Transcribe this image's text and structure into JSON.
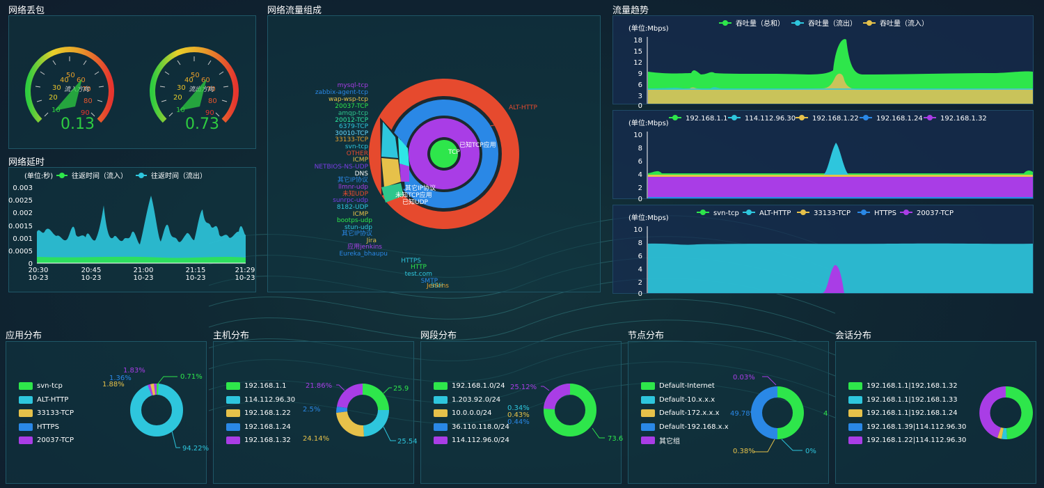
{
  "colors": {
    "green": "#2ee64b",
    "cyan": "#2ec6dd",
    "yellow": "#e6c14a",
    "blue": "#2a88e6",
    "purple": "#a93de6",
    "red": "#e64a2e"
  },
  "packet_loss": {
    "title": "网络丢包",
    "gauges": [
      {
        "label": "流入方向",
        "value": "0.13"
      },
      {
        "label": "流出方向",
        "value": "0.73"
      }
    ],
    "ticks": [
      "10",
      "20",
      "30",
      "40",
      "50",
      "60",
      "70",
      "80",
      "90"
    ]
  },
  "latency": {
    "title": "网络延时",
    "unit": "(单位:秒)",
    "legend": [
      "往返时间（流入）",
      "往返时间（流出）"
    ],
    "y_ticks": [
      "0.003",
      "0.0025",
      "0.002",
      "0.0015",
      "0.001",
      "0.0005",
      "0"
    ],
    "x_ticks": [
      [
        "20:30",
        "10-23"
      ],
      [
        "20:45",
        "10-23"
      ],
      [
        "21:00",
        "10-23"
      ],
      [
        "21:15",
        "10-23"
      ],
      [
        "21:29",
        "10-23"
      ]
    ]
  },
  "composition": {
    "title": "网络流量组成",
    "outer_label": "ALT-HTTP",
    "inner_labels": [
      "已知TCP应用",
      "TCP",
      "其它IP协议",
      "未知TCP应用",
      "已知UDP"
    ],
    "left_labels": [
      "mysql-tcp",
      "zabbix-agent-tcp",
      "wap-wsp-tcp",
      "20037-TCP",
      "amqp-tcp",
      "20012-TCP",
      "6379-TCP",
      "30010-TCP",
      "33133-TCP",
      "svn-tcp",
      "OTHER",
      "ICMP",
      "NETBIOS-NS-UDP",
      "DNS",
      "其它IP协议",
      "llmnr-udp",
      "未知UDP",
      "sunrpc-udp",
      "8182-UDP",
      "ICMP",
      "bootps-udp",
      "stun-udp",
      "其它IP协议",
      "Jira",
      "应用jenkins",
      "Eureka_bhaupu",
      "HTTPS",
      "HTTP",
      "test.com",
      "SMTP",
      "SSH",
      "Jenkins"
    ]
  },
  "trend": {
    "title": "流量趋势",
    "panels": [
      {
        "unit": "(单位:Mbps)",
        "legend": [
          "吞吐量（总和）",
          "吞吐量（流出）",
          "吞吐量（流入）"
        ],
        "y_ticks": [
          "18",
          "15",
          "12",
          "9",
          "6",
          "3",
          "0"
        ]
      },
      {
        "unit": "(单位:Mbps)",
        "legend": [
          "192.168.1.1",
          "114.112.96.30",
          "192.168.1.22",
          "192.168.1.24",
          "192.168.1.32"
        ],
        "y_ticks": [
          "10",
          "8",
          "6",
          "4",
          "2",
          "0"
        ]
      },
      {
        "unit": "(单位:Mbps)",
        "legend": [
          "svn-tcp",
          "ALT-HTTP",
          "33133-TCP",
          "HTTPS",
          "20037-TCP"
        ],
        "y_ticks": [
          "10",
          "8",
          "6",
          "4",
          "2",
          "0"
        ]
      }
    ]
  },
  "distributions": [
    {
      "title": "应用分布",
      "legend": [
        "svn-tcp",
        "ALT-HTTP",
        "33133-TCP",
        "HTTPS",
        "20037-TCP"
      ],
      "labels": [
        "0.71%",
        "1.36%",
        "1.88%",
        "1.83%",
        "94.22%"
      ]
    },
    {
      "title": "主机分布",
      "legend": [
        "192.168.1.1",
        "114.112.96.30",
        "192.168.1.22",
        "192.168.1.24",
        "192.168.1.32"
      ],
      "labels": [
        "25.9",
        "21.86%",
        "2.5%",
        "24.14%",
        "25.54"
      ]
    },
    {
      "title": "网段分布",
      "legend": [
        "192.168.1.0/24",
        "1.203.92.0/24",
        "10.0.0.0/24",
        "36.110.118.0/24",
        "114.112.96.0/24"
      ],
      "labels": [
        "25.12%",
        "0.34%",
        "0.43%",
        "0.44%",
        "73.6"
      ]
    },
    {
      "title": "节点分布",
      "legend": [
        "Default-Internet",
        "Default-10.x.x.x",
        "Default-172.x.x.x",
        "Default-192.168.x.x",
        "其它组"
      ],
      "labels": [
        "0.03%",
        "49.78%",
        "0.38%",
        "0%",
        "4"
      ]
    },
    {
      "title": "会话分布",
      "legend": [
        "192.168.1.1|192.168.1.32",
        "192.168.1.1|192.168.1.33",
        "192.168.1.1|192.168.1.24",
        "192.168.1.39|114.112.96.30",
        "192.168.1.22|114.112.96.30"
      ],
      "labels": []
    }
  ]
}
